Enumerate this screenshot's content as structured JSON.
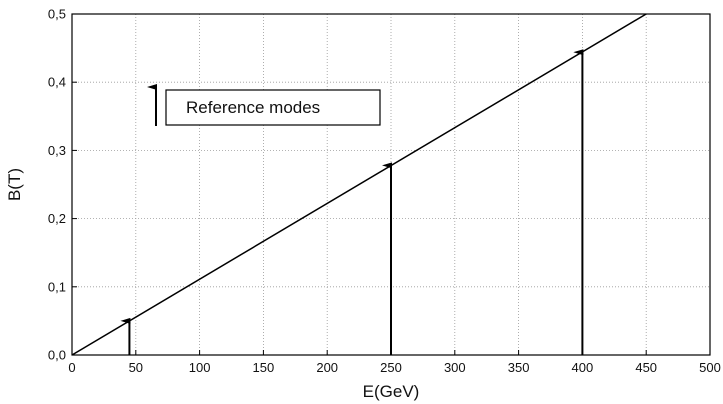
{
  "chart_data": {
    "type": "line",
    "title": "",
    "xlabel": "E(GeV)",
    "ylabel": "B(T)",
    "xlim": [
      0,
      500
    ],
    "ylim": [
      0,
      0.5
    ],
    "grid": true,
    "x_ticks": [
      0,
      50,
      100,
      150,
      200,
      250,
      300,
      350,
      400,
      450,
      500
    ],
    "x_tick_labels": [
      "0",
      "50",
      "100",
      "150",
      "200",
      "250",
      "300",
      "350",
      "400",
      "450",
      "500"
    ],
    "y_ticks": [
      0,
      0.1,
      0.2,
      0.3,
      0.4,
      0.5
    ],
    "y_tick_labels": [
      "0,0",
      "0,1",
      "0,2",
      "0,3",
      "0,4",
      "0,5"
    ],
    "series": [
      {
        "x": [
          0,
          450
        ],
        "y": [
          0,
          0.5
        ]
      }
    ],
    "reference_modes": [
      {
        "x": 45,
        "y": 0.05
      },
      {
        "x": 250,
        "y": 0.278
      },
      {
        "x": 400,
        "y": 0.444
      }
    ],
    "legend": {
      "label": "Reference modes",
      "placement": "upper-left"
    }
  }
}
